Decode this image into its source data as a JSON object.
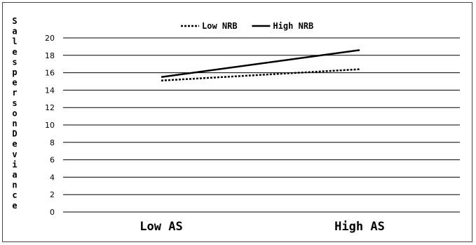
{
  "chart_data": {
    "type": "line",
    "categories": [
      "Low AS",
      "High AS"
    ],
    "series": [
      {
        "name": "Low NRB",
        "values": [
          15.1,
          16.4
        ],
        "style": "dotted",
        "color": "#000000"
      },
      {
        "name": "High NRB",
        "values": [
          15.5,
          18.6
        ],
        "style": "solid",
        "color": "#000000"
      }
    ],
    "ylabel": "SalespersonDeviance",
    "ylim": [
      0,
      20
    ],
    "yticks": [
      0,
      2,
      4,
      6,
      8,
      10,
      12,
      14,
      16,
      18,
      20
    ],
    "grid": true,
    "legend": "top-center"
  }
}
